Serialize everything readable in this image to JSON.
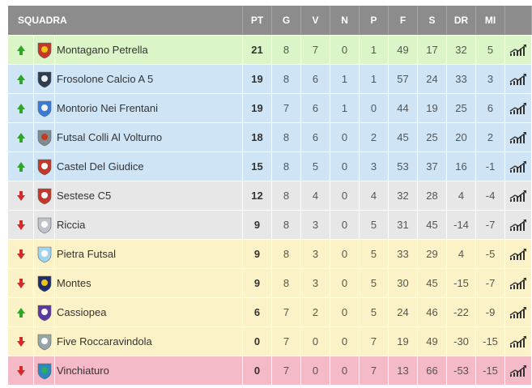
{
  "header": {
    "team": "SQUADRA",
    "pt": "PT",
    "g": "G",
    "v": "V",
    "n": "N",
    "p": "P",
    "f": "F",
    "s": "S",
    "dr": "DR",
    "mi": "MI"
  },
  "rows": [
    {
      "name": "Montagano Petrella",
      "trend": "up",
      "zone": "green",
      "pt": "21",
      "g": "8",
      "v": "7",
      "n": "0",
      "p": "1",
      "f": "49",
      "s": "17",
      "dr": "32",
      "mi": "5"
    },
    {
      "name": "Frosolone Calcio A 5",
      "trend": "up",
      "zone": "blue",
      "pt": "19",
      "g": "8",
      "v": "6",
      "n": "1",
      "p": "1",
      "f": "57",
      "s": "24",
      "dr": "33",
      "mi": "3"
    },
    {
      "name": "Montorio Nei Frentani",
      "trend": "up",
      "zone": "blue",
      "pt": "19",
      "g": "7",
      "v": "6",
      "n": "1",
      "p": "0",
      "f": "44",
      "s": "19",
      "dr": "25",
      "mi": "6"
    },
    {
      "name": "Futsal Colli Al Volturno",
      "trend": "up",
      "zone": "blue",
      "pt": "18",
      "g": "8",
      "v": "6",
      "n": "0",
      "p": "2",
      "f": "45",
      "s": "25",
      "dr": "20",
      "mi": "2"
    },
    {
      "name": "Castel Del Giudice",
      "trend": "up",
      "zone": "blue",
      "pt": "15",
      "g": "8",
      "v": "5",
      "n": "0",
      "p": "3",
      "f": "53",
      "s": "37",
      "dr": "16",
      "mi": "-1"
    },
    {
      "name": "Sestese C5",
      "trend": "down",
      "zone": "grey",
      "pt": "12",
      "g": "8",
      "v": "4",
      "n": "0",
      "p": "4",
      "f": "32",
      "s": "28",
      "dr": "4",
      "mi": "-4"
    },
    {
      "name": "Riccia",
      "trend": "down",
      "zone": "grey",
      "pt": "9",
      "g": "8",
      "v": "3",
      "n": "0",
      "p": "5",
      "f": "31",
      "s": "45",
      "dr": "-14",
      "mi": "-7"
    },
    {
      "name": "Pietra Futsal",
      "trend": "down",
      "zone": "yellow",
      "pt": "9",
      "g": "8",
      "v": "3",
      "n": "0",
      "p": "5",
      "f": "33",
      "s": "29",
      "dr": "4",
      "mi": "-5"
    },
    {
      "name": "Montes",
      "trend": "down",
      "zone": "yellow",
      "pt": "9",
      "g": "8",
      "v": "3",
      "n": "0",
      "p": "5",
      "f": "30",
      "s": "45",
      "dr": "-15",
      "mi": "-7"
    },
    {
      "name": "Cassiopea",
      "trend": "up",
      "zone": "yellow",
      "pt": "6",
      "g": "7",
      "v": "2",
      "n": "0",
      "p": "5",
      "f": "24",
      "s": "46",
      "dr": "-22",
      "mi": "-9"
    },
    {
      "name": "Five Roccaravindola",
      "trend": "down",
      "zone": "yellow",
      "pt": "0",
      "g": "7",
      "v": "0",
      "n": "0",
      "p": "7",
      "f": "19",
      "s": "49",
      "dr": "-30",
      "mi": "-15"
    },
    {
      "name": "Vinchiaturo",
      "trend": "down",
      "zone": "red",
      "pt": "0",
      "g": "7",
      "v": "0",
      "n": "0",
      "p": "7",
      "f": "13",
      "s": "66",
      "dr": "-53",
      "mi": "-15"
    }
  ],
  "colors": {
    "header_bg": "#8c8c8c",
    "green": "#dcf5c8",
    "blue": "#cfe5f6",
    "grey": "#e7e7e7",
    "yellow": "#fcf2c7",
    "red": "#f5bac8",
    "arrow_up": "#2fa628",
    "arrow_down": "#d62a2a"
  },
  "icons": {
    "trend": "trend-chart-icon",
    "logos": [
      "club-crest-icon"
    ]
  }
}
